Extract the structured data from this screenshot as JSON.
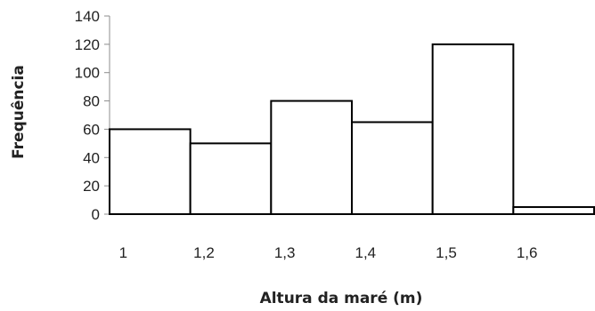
{
  "chart_data": {
    "type": "bar",
    "categories": [
      "1",
      "1,2",
      "1,3",
      "1,4",
      "1,5",
      "1,6"
    ],
    "values": [
      60,
      50,
      80,
      65,
      120,
      5
    ],
    "xlabel": "Altura da maré (m)",
    "ylabel": "Frequência",
    "ylim": [
      0,
      140
    ],
    "yticks": [
      "0",
      "20",
      "40",
      "60",
      "80",
      "100",
      "120",
      "140"
    ],
    "grid": false,
    "legend": "none",
    "colors": {
      "bar_fill": "#ffffff",
      "bar_stroke": "#000000",
      "axis": "#8c8c8c",
      "text": "#222222"
    }
  }
}
